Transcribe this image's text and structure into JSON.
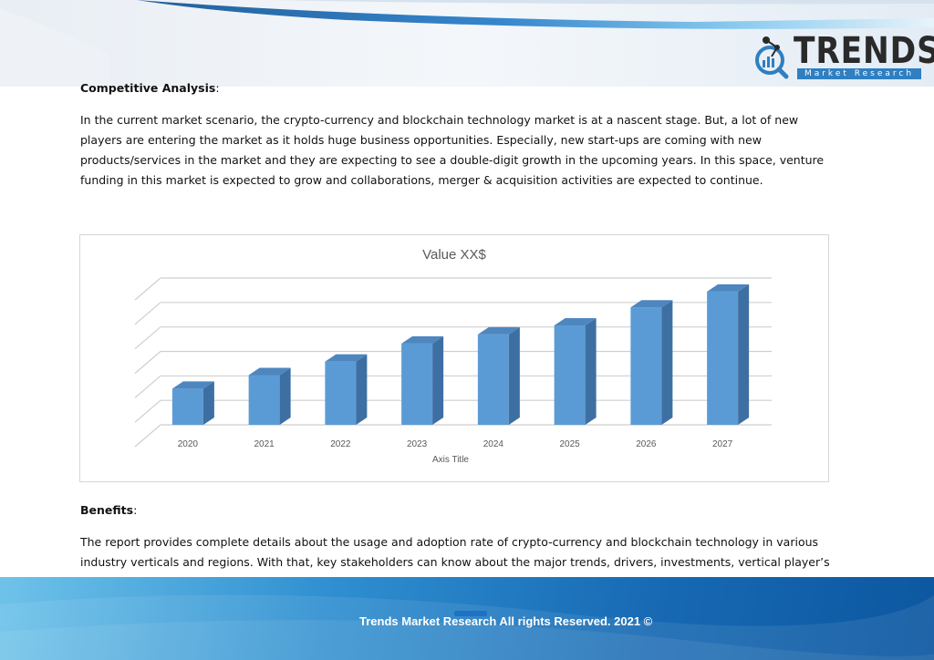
{
  "logo": {
    "brand": "TRENDS",
    "tagline": "Market Research",
    "icon": "molecule-magnifier-logo-icon"
  },
  "competitive": {
    "heading": "Competitive Analysis",
    "colon": ":",
    "lines": [
      "In the current market scenario, the crypto-currency and blockchain technology market is at a nascent stage. But, a lot of new",
      "players are entering the market as it holds huge business opportunities. Especially, new start-ups are coming with new",
      "products/services in the market and they are expecting to see a double-digit growth in the upcoming years. In this space, venture",
      "funding in this market is expected to grow and collaborations, merger & acquisition activities are expected to continue."
    ]
  },
  "chart_data": {
    "type": "bar",
    "style": "3d-column",
    "title": "Value XX$",
    "xlabel": "Axis Title",
    "ylabel": "",
    "categories": [
      "2020",
      "2021",
      "2022",
      "2023",
      "2024",
      "2025",
      "2026",
      "2027"
    ],
    "values": [
      1.6,
      2.2,
      2.8,
      3.6,
      4.0,
      4.4,
      5.2,
      5.9
    ],
    "ylim": [
      0,
      6.5
    ],
    "y_tick_labels_shown": false,
    "grid": true,
    "legend": "none",
    "bar_color": "#5b9bd5",
    "bar_side_color": "#3d6fa3",
    "bar_top_color": "#4e86bf"
  },
  "benefits": {
    "heading": "Benefits",
    "colon": ":",
    "lines": [
      "The report provides complete details about the usage and adoption rate of crypto-currency and blockchain technology in various",
      "industry verticals and regions. With that, key stakeholders can know about the major trends, drivers, investments, vertical player’s"
    ]
  },
  "footer": {
    "text": "Trends Market Research All rights Reserved. 2021 ©"
  },
  "colors": {
    "header_band": "#dfe9f3",
    "footer_dark": "#0c57a0",
    "footer_light": "#6fc3ea",
    "accent": "#2f7fc1"
  }
}
